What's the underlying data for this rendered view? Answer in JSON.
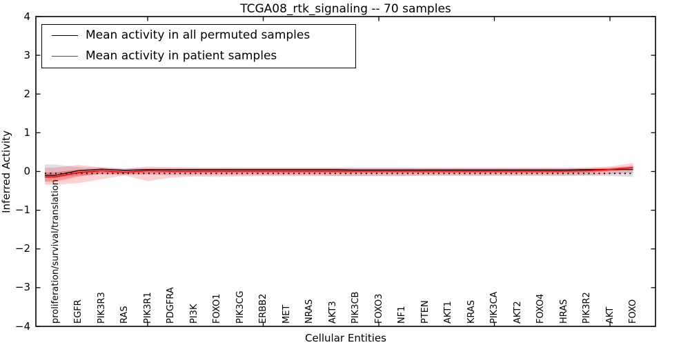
{
  "chart_data": {
    "type": "line",
    "title": "TCGA08_rtk_signaling -- 70 samples",
    "xlabel": "Cellular Entities",
    "ylabel": "Inferred Activity",
    "ylim": [
      -4,
      4
    ],
    "grid": false,
    "y_ticks": [
      4,
      3,
      2,
      1,
      0,
      -1,
      -2,
      -3,
      -4
    ],
    "y_tick_labels": [
      "4",
      "3",
      "2",
      "1",
      "0",
      "−1",
      "−2",
      "−3",
      "−4"
    ],
    "x_major_ticks": [
      5,
      10,
      15,
      20,
      25
    ],
    "categories": [
      "proliferation/survival/translation",
      "EGFR",
      "PIK3R3",
      "RAS",
      "PIK3R1",
      "PDGFRA",
      "PI3K",
      "FOXO1",
      "PIK3CG",
      "ERBB2",
      "MET",
      "NRAS",
      "AKT3",
      "PIK3CB",
      "FOXO3",
      "NF1",
      "PTEN",
      "AKT1",
      "KRAS",
      "PIK3CA",
      "AKT2",
      "FOXO4",
      "HRAS",
      "PIK3R2",
      "AKT",
      "FOXO"
    ],
    "legend": {
      "position": "upper left",
      "entries": [
        {
          "label": "Mean activity in all permuted samples",
          "color": "#000000"
        },
        {
          "label": "Mean activity in patient samples",
          "color": "#ff0000"
        }
      ]
    },
    "baseline": {
      "value": -0.05,
      "style": "dotted",
      "color": "#000000"
    },
    "series": [
      {
        "name": "Mean activity in all permuted samples",
        "color": "#000000",
        "width": 1.3,
        "values": [
          -0.1,
          0.02,
          0.06,
          0.03,
          0.05,
          0.05,
          0.05,
          0.05,
          0.05,
          0.05,
          0.05,
          0.05,
          0.05,
          0.04,
          0.04,
          0.04,
          0.04,
          0.04,
          0.04,
          0.04,
          0.04,
          0.04,
          0.04,
          0.05,
          0.05,
          0.05
        ]
      },
      {
        "name": "Mean activity in patient samples",
        "color": "#ff0000",
        "width": 1.6,
        "values": [
          -0.14,
          -0.03,
          0.02,
          -0.02,
          0.02,
          0.01,
          0.01,
          0.01,
          0.01,
          0.01,
          0.01,
          0.01,
          0.01,
          0.01,
          0.01,
          0.01,
          0.01,
          0.01,
          0.01,
          0.01,
          0.01,
          0.01,
          0.01,
          0.02,
          0.05,
          0.1
        ]
      }
    ],
    "bands": [
      {
        "name": "permuted-spread",
        "color": "rgba(110,110,140,0.22)",
        "upper": [
          0.18,
          0.11,
          0.1,
          0.08,
          0.09,
          0.09,
          0.09,
          0.09,
          0.09,
          0.09,
          0.09,
          0.09,
          0.09,
          0.09,
          0.09,
          0.09,
          0.09,
          0.09,
          0.09,
          0.09,
          0.09,
          0.09,
          0.09,
          0.09,
          0.1,
          0.11
        ],
        "lower": [
          -0.16,
          -0.1,
          -0.08,
          -0.09,
          -0.09,
          -0.1,
          -0.1,
          -0.1,
          -0.1,
          -0.1,
          -0.1,
          -0.1,
          -0.11,
          -0.11,
          -0.11,
          -0.11,
          -0.11,
          -0.11,
          -0.11,
          -0.11,
          -0.11,
          -0.11,
          -0.11,
          -0.11,
          -0.12,
          -0.14
        ]
      },
      {
        "name": "patient-spread-outer",
        "color": "rgba(255,0,0,0.18)",
        "upper": [
          0.1,
          0.17,
          0.11,
          0.07,
          0.13,
          0.11,
          0.1,
          0.1,
          0.1,
          0.1,
          0.1,
          0.1,
          0.1,
          0.1,
          0.1,
          0.1,
          0.09,
          0.09,
          0.09,
          0.09,
          0.09,
          0.09,
          0.09,
          0.1,
          0.13,
          0.22
        ],
        "lower": [
          -0.34,
          -0.3,
          -0.2,
          -0.1,
          -0.25,
          -0.16,
          -0.13,
          -0.14,
          -0.13,
          -0.12,
          -0.12,
          -0.12,
          -0.12,
          -0.12,
          -0.12,
          -0.12,
          -0.11,
          -0.11,
          -0.11,
          -0.11,
          -0.11,
          -0.11,
          -0.11,
          -0.1,
          -0.07,
          -0.04
        ]
      },
      {
        "name": "patient-spread-inner",
        "color": "rgba(255,0,0,0.30)",
        "upper": [
          -0.02,
          0.05,
          0.06,
          0.02,
          0.06,
          0.05,
          0.05,
          0.05,
          0.05,
          0.05,
          0.05,
          0.05,
          0.05,
          0.05,
          0.05,
          0.05,
          0.05,
          0.05,
          0.05,
          0.05,
          0.05,
          0.05,
          0.05,
          0.06,
          0.09,
          0.15
        ],
        "lower": [
          -0.26,
          -0.13,
          -0.05,
          -0.07,
          -0.05,
          -0.04,
          -0.04,
          -0.04,
          -0.04,
          -0.04,
          -0.04,
          -0.04,
          -0.04,
          -0.04,
          -0.04,
          -0.04,
          -0.04,
          -0.04,
          -0.04,
          -0.04,
          -0.04,
          -0.04,
          -0.04,
          -0.03,
          0.01,
          0.06
        ]
      }
    ]
  }
}
